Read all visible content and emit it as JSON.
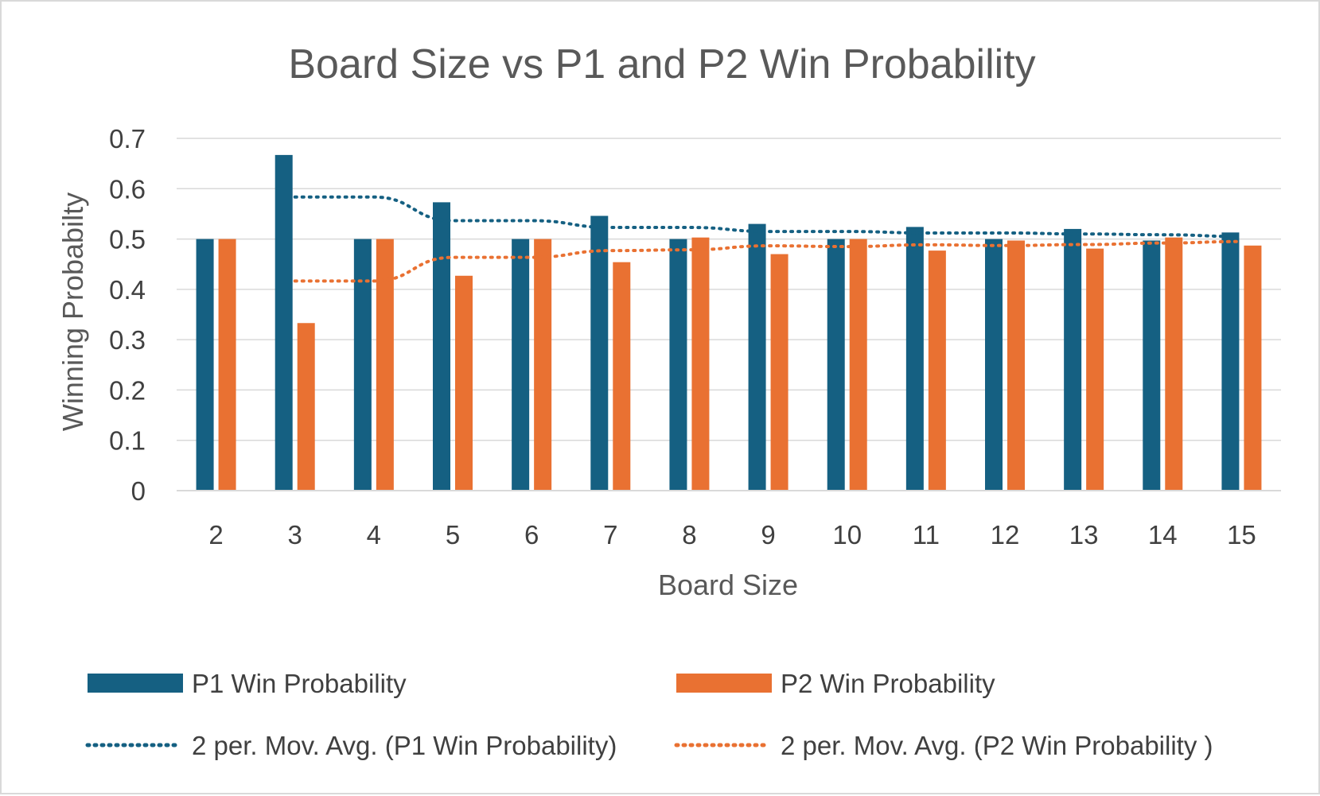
{
  "chart_data": {
    "type": "bar",
    "title": "Board Size vs P1  and P2 Win Probability",
    "xlabel": "Board Size",
    "ylabel": "Winning Probabilty",
    "ylim": [
      0,
      0.7
    ],
    "yticks": [
      "0",
      "0.1",
      "0.2",
      "0.3",
      "0.4",
      "0.5",
      "0.6",
      "0.7"
    ],
    "grid": true,
    "legend_position": "bottom",
    "categories": [
      "2",
      "3",
      "4",
      "5",
      "6",
      "7",
      "8",
      "9",
      "10",
      "11",
      "12",
      "13",
      "14",
      "15"
    ],
    "series": [
      {
        "name": "P1 Win Probability",
        "color": "#156082",
        "values": [
          0.5,
          0.667,
          0.5,
          0.573,
          0.5,
          0.546,
          0.5,
          0.53,
          0.5,
          0.524,
          0.5,
          0.52,
          0.497,
          0.513
        ]
      },
      {
        "name": "P2 Win Probability",
        "color": "#e97132",
        "values": [
          0.5,
          0.333,
          0.5,
          0.427,
          0.5,
          0.454,
          0.503,
          0.47,
          0.5,
          0.477,
          0.497,
          0.481,
          0.503,
          0.487
        ]
      }
    ],
    "trendlines": [
      {
        "name": "2 per. Mov. Avg. (P1 Win Probability)",
        "type": "moving_average",
        "period": 2,
        "color": "#156082",
        "style": "dotted"
      },
      {
        "name": "2 per. Mov. Avg. (P2 Win Probability )",
        "type": "moving_average",
        "period": 2,
        "color": "#e97132",
        "style": "dotted"
      }
    ]
  }
}
